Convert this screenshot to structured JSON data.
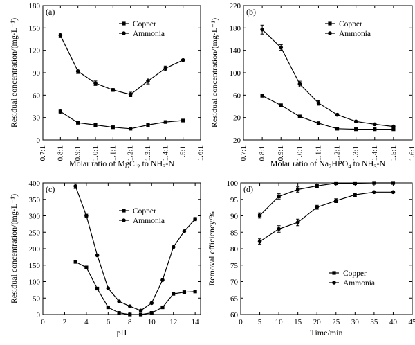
{
  "chart_data": [
    {
      "type": "line",
      "panel_label": "(a)",
      "xlabel": {
        "pre": "Molar ratio of MgCl",
        "sub1": "2",
        "mid": " to NH",
        "sub2": "3",
        "post": "-N"
      },
      "ylabel": "Residual concentration/(mg·L⁻¹)",
      "categories": [
        "0.7:1",
        "0.8:1",
        "0.9:1",
        "1.0:1",
        "1.1:1",
        "1.2:1",
        "1.3:1",
        "1.4:1",
        "1.5:1",
        "1.6:1"
      ],
      "x_ticks": [
        0.7,
        0.8,
        0.9,
        1.0,
        1.1,
        1.2,
        1.3,
        1.4,
        1.5,
        1.6
      ],
      "y_ticks": [
        0,
        30,
        60,
        90,
        120,
        150,
        180
      ],
      "xlim": [
        0.7,
        1.6
      ],
      "ylim": [
        0,
        180
      ],
      "legend": "top-right",
      "series": [
        {
          "name": "Copper",
          "marker": "square",
          "x": [
            0.8,
            0.9,
            1.0,
            1.1,
            1.2,
            1.3,
            1.4,
            1.5
          ],
          "values": [
            38,
            23,
            20,
            17,
            15,
            20,
            24,
            26
          ],
          "err": [
            3,
            0,
            0,
            0,
            0,
            0,
            0,
            0
          ]
        },
        {
          "name": "Ammonia",
          "marker": "circle",
          "x": [
            0.8,
            0.9,
            1.0,
            1.1,
            1.2,
            1.3,
            1.4,
            1.5
          ],
          "values": [
            140,
            92,
            76,
            67,
            61,
            79,
            96,
            107
          ],
          "err": [
            3,
            3,
            3,
            2,
            3,
            4,
            3,
            1
          ]
        }
      ]
    },
    {
      "type": "line",
      "panel_label": "(b)",
      "xlabel": {
        "pre": "Molar ratio of Na",
        "sub1": "2",
        "mid": "HPO",
        "sub2": "4",
        "post": " to NH",
        "sub3": "3",
        "post2": "-N"
      },
      "ylabel": "Residual concentration/(mg·L⁻¹)",
      "categories": [
        "0.7:1",
        "0.8:1",
        "0.9:1",
        "1.0:1",
        "1.1:1",
        "1.2:1",
        "1.3:1",
        "1.4:1",
        "1.5:1",
        "1.6:1"
      ],
      "x_ticks": [
        0.7,
        0.8,
        0.9,
        1.0,
        1.1,
        1.2,
        1.3,
        1.4,
        1.5,
        1.6
      ],
      "y_ticks": [
        -20,
        20,
        60,
        100,
        140,
        180,
        220
      ],
      "xlim": [
        0.7,
        1.6
      ],
      "ylim": [
        -20,
        220
      ],
      "legend": "top-right",
      "series": [
        {
          "name": "Copper",
          "marker": "square",
          "x": [
            0.8,
            0.9,
            1.0,
            1.1,
            1.2,
            1.3,
            1.4,
            1.5
          ],
          "values": [
            59,
            42,
            22,
            10,
            0,
            -1,
            -1,
            -1
          ],
          "err": [
            0,
            0,
            0,
            0,
            0,
            0,
            0,
            0
          ]
        },
        {
          "name": "Ammonia",
          "marker": "circle",
          "x": [
            0.8,
            0.9,
            1.0,
            1.1,
            1.2,
            1.3,
            1.4,
            1.5
          ],
          "values": [
            177,
            145,
            80,
            46,
            25,
            13,
            8,
            4
          ],
          "err": [
            8,
            5,
            5,
            4,
            2,
            0,
            0,
            0
          ]
        }
      ]
    },
    {
      "type": "line",
      "panel_label": "(c)",
      "xlabel": {
        "pre": "pH"
      },
      "ylabel": "Residual concentration/(mg·L⁻¹)",
      "x_ticks": [
        0,
        2,
        4,
        6,
        8,
        10,
        12,
        14
      ],
      "y_ticks": [
        0,
        50,
        100,
        150,
        200,
        250,
        300,
        350,
        400
      ],
      "xlim": [
        0,
        14.5
      ],
      "ylim": [
        0,
        400
      ],
      "legend": "upper-center",
      "series": [
        {
          "name": "Copper",
          "marker": "square",
          "x": [
            3,
            4,
            5,
            6,
            7,
            8,
            9,
            10,
            11,
            12,
            13,
            14
          ],
          "values": [
            160,
            143,
            79,
            22,
            5,
            0,
            0,
            5,
            22,
            63,
            68,
            70
          ],
          "err": [
            0,
            0,
            0,
            0,
            0,
            0,
            0,
            0,
            0,
            0,
            0,
            0
          ]
        },
        {
          "name": "Ammonia",
          "marker": "circle",
          "x": [
            3,
            4,
            5,
            6,
            7,
            8,
            9,
            10,
            11,
            12,
            13,
            14
          ],
          "values": [
            390,
            300,
            180,
            80,
            40,
            25,
            12,
            35,
            105,
            205,
            253,
            290
          ],
          "err": [
            7,
            5,
            0,
            0,
            0,
            0,
            0,
            0,
            0,
            0,
            0,
            5
          ]
        }
      ]
    },
    {
      "type": "line",
      "panel_label": "(d)",
      "xlabel": {
        "pre": "Time/min"
      },
      "ylabel": "Removal efficiency/%",
      "x_ticks": [
        0,
        5,
        10,
        15,
        20,
        25,
        30,
        35,
        40,
        45
      ],
      "y_ticks": [
        60,
        65,
        70,
        75,
        80,
        85,
        90,
        95,
        100
      ],
      "xlim": [
        0,
        45
      ],
      "ylim": [
        60,
        100
      ],
      "legend": "lower-right",
      "series": [
        {
          "name": "Copper",
          "marker": "square",
          "x": [
            5,
            10,
            15,
            20,
            25,
            30,
            35,
            40
          ],
          "values": [
            90.1,
            95.9,
            98.0,
            99.1,
            99.9,
            99.9,
            100.0,
            100.0
          ],
          "err": [
            0.8,
            0.8,
            0.8,
            0.5,
            0,
            0,
            0,
            0
          ]
        },
        {
          "name": "Ammonia",
          "marker": "circle",
          "x": [
            5,
            10,
            15,
            20,
            25,
            30,
            35,
            40
          ],
          "values": [
            82.2,
            86.0,
            88.0,
            92.6,
            94.6,
            96.4,
            97.2,
            97.2
          ],
          "err": [
            0.8,
            1.0,
            1.0,
            0.6,
            0.6,
            0.5,
            0,
            0
          ]
        }
      ]
    }
  ]
}
